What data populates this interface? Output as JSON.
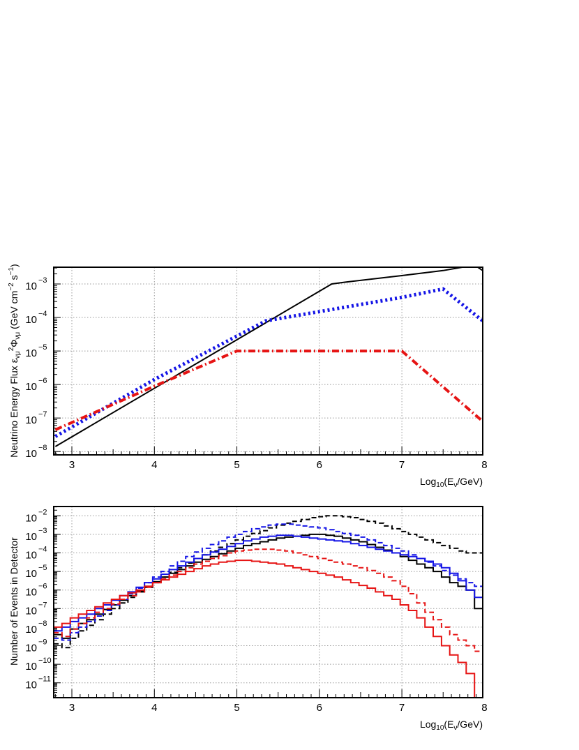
{
  "chart_data": [
    {
      "type": "line",
      "title": "",
      "xlabel": "Log₁₀(E_ν/GeV)",
      "xlabel_parts": [
        "Log",
        "10",
        "(E",
        "ν",
        "/GeV)"
      ],
      "ylabel": "Neutrino Energy Flux ε_νμ²Φ_νμ (GeV cm⁻² s⁻¹)",
      "ylabel_parts": [
        "Neutrino Energy Flux ε",
        "νμ",
        "2",
        "Φ",
        "νμ",
        " (GeV cm",
        "−2",
        " s",
        "−1",
        ")"
      ],
      "xlim": [
        2.78,
        7.98
      ],
      "ylim_log10": [
        -8.1,
        -2.5
      ],
      "y_scale": "log",
      "grid": true,
      "x_ticks": [
        3,
        4,
        5,
        6,
        7,
        8
      ],
      "x_tick_labels": [
        "3",
        "4",
        "5",
        "6",
        "7",
        "8"
      ],
      "y_ticks_log10": [
        -8,
        -7,
        -6,
        -5,
        -4,
        -3
      ],
      "y_tick_base": "10",
      "y_tick_exps": [
        "−8",
        "−7",
        "−6",
        "−5",
        "−4",
        "−3"
      ],
      "series": [
        {
          "color": "#000000",
          "style": "solid",
          "width": 2,
          "x": [
            2.8,
            6.15,
            6.3,
            7.0,
            7.5,
            7.85,
            7.92,
            7.98
          ],
          "log10y": [
            -7.85,
            -3.0,
            -2.95,
            -2.75,
            -2.6,
            -2.45,
            -2.5,
            -2.6
          ]
        },
        {
          "color": "#1414e6",
          "style": "dotted",
          "width": 5,
          "x": [
            2.8,
            4.0,
            5.35,
            7.0,
            7.5,
            7.98
          ],
          "log10y": [
            -7.55,
            -5.85,
            -4.1,
            -3.4,
            -3.15,
            -4.1
          ]
        },
        {
          "color": "#e61414",
          "style": "dashdot",
          "width": 4,
          "x": [
            2.8,
            4.0,
            5.0,
            7.0,
            7.98
          ],
          "log10y": [
            -7.35,
            -6.05,
            -5.0,
            -5.0,
            -7.1
          ]
        }
      ]
    },
    {
      "type": "line",
      "title": "",
      "xlabel": "Log₁₀(E_ν/GeV)",
      "xlabel_parts": [
        "Log",
        "10",
        "(E",
        "ν",
        "/GeV)"
      ],
      "ylabel": "Number of Events in Detector",
      "xlim": [
        2.78,
        7.98
      ],
      "ylim_log10": [
        -11.8,
        -1.5
      ],
      "y_scale": "log",
      "grid": true,
      "x_ticks": [
        3,
        4,
        5,
        6,
        7,
        8
      ],
      "x_tick_labels": [
        "3",
        "4",
        "5",
        "6",
        "7",
        "8"
      ],
      "y_ticks_log10": [
        -11,
        -10,
        -9,
        -8,
        -7,
        -6,
        -5,
        -4,
        -3,
        -2
      ],
      "y_tick_base": "10",
      "y_tick_exps": [
        "−11",
        "−10",
        "−9",
        "−8",
        "−7",
        "−6",
        "−5",
        "−4",
        "−3",
        "−2"
      ],
      "bin_width": 0.1,
      "x_start": 2.78,
      "series": [
        {
          "color": "#000000",
          "style": "solid",
          "width": 2,
          "log10y": [
            -8.4,
            -8.6,
            -8.1,
            -7.8,
            -7.6,
            -7.3,
            -7.05,
            -6.8,
            -6.55,
            -6.3,
            -6.05,
            -5.8,
            -5.55,
            -5.3,
            -5.1,
            -4.9,
            -4.7,
            -4.5,
            -4.35,
            -4.2,
            -4.05,
            -3.9,
            -3.75,
            -3.6,
            -3.5,
            -3.4,
            -3.3,
            -3.2,
            -3.15,
            -3.1,
            -3.05,
            -3.0,
            -3.0,
            -3.05,
            -3.1,
            -3.2,
            -3.3,
            -3.4,
            -3.55,
            -3.7,
            -3.85,
            -4.0,
            -4.2,
            -4.4,
            -4.6,
            -4.8,
            -5.0,
            -5.3,
            -5.6,
            -5.8,
            -6.0,
            -7.0
          ]
        },
        {
          "color": "#000000",
          "style": "dashed",
          "width": 2,
          "log10y": [
            -8.9,
            -9.1,
            -8.6,
            -8.2,
            -7.9,
            -7.6,
            -7.3,
            -7.0,
            -6.7,
            -6.4,
            -6.1,
            -5.85,
            -5.6,
            -5.3,
            -5.05,
            -4.8,
            -4.55,
            -4.3,
            -4.1,
            -3.9,
            -3.7,
            -3.5,
            -3.3,
            -3.1,
            -2.95,
            -2.8,
            -2.65,
            -2.5,
            -2.4,
            -2.3,
            -2.2,
            -2.1,
            -2.05,
            -2.0,
            -2.0,
            -2.05,
            -2.1,
            -2.2,
            -2.3,
            -2.4,
            -2.55,
            -2.7,
            -2.85,
            -3.0,
            -3.15,
            -3.3,
            -3.45,
            -3.6,
            -3.75,
            -3.9,
            -4.0,
            -4.0
          ]
        },
        {
          "color": "#1414e6",
          "style": "solid",
          "width": 2,
          "log10y": [
            -8.2,
            -8.0,
            -7.7,
            -7.5,
            -7.3,
            -7.0,
            -6.8,
            -6.55,
            -6.3,
            -6.1,
            -5.85,
            -5.6,
            -5.4,
            -5.15,
            -4.9,
            -4.7,
            -4.5,
            -4.3,
            -4.1,
            -3.95,
            -3.8,
            -3.65,
            -3.5,
            -3.35,
            -3.25,
            -3.15,
            -3.1,
            -3.05,
            -3.05,
            -3.1,
            -3.15,
            -3.2,
            -3.25,
            -3.3,
            -3.35,
            -3.4,
            -3.5,
            -3.6,
            -3.7,
            -3.8,
            -3.9,
            -4.0,
            -4.1,
            -4.2,
            -4.3,
            -4.45,
            -4.6,
            -4.8,
            -5.1,
            -5.5,
            -6.0,
            -6.4
          ]
        },
        {
          "color": "#1414e6",
          "style": "dashed",
          "width": 2,
          "log10y": [
            -8.6,
            -8.7,
            -8.3,
            -8.0,
            -7.7,
            -7.4,
            -7.1,
            -6.8,
            -6.5,
            -6.2,
            -5.9,
            -5.6,
            -5.3,
            -5.0,
            -4.7,
            -4.45,
            -4.2,
            -3.95,
            -3.75,
            -3.55,
            -3.35,
            -3.15,
            -3.0,
            -2.85,
            -2.7,
            -2.6,
            -2.5,
            -2.45,
            -2.45,
            -2.5,
            -2.55,
            -2.6,
            -2.65,
            -2.75,
            -2.85,
            -2.95,
            -3.05,
            -3.15,
            -3.3,
            -3.45,
            -3.6,
            -3.75,
            -3.9,
            -4.1,
            -4.3,
            -4.5,
            -4.7,
            -4.95,
            -5.2,
            -5.4,
            -5.6,
            -5.8
          ]
        },
        {
          "color": "#e61414",
          "style": "solid",
          "width": 2,
          "log10y": [
            -8.0,
            -7.8,
            -7.5,
            -7.3,
            -7.1,
            -6.9,
            -6.7,
            -6.5,
            -6.3,
            -6.15,
            -6.0,
            -5.8,
            -5.6,
            -5.45,
            -5.3,
            -5.15,
            -5.0,
            -4.85,
            -4.7,
            -4.6,
            -4.5,
            -4.45,
            -4.4,
            -4.4,
            -4.45,
            -4.5,
            -4.55,
            -4.6,
            -4.7,
            -4.8,
            -4.9,
            -5.0,
            -5.1,
            -5.2,
            -5.3,
            -5.45,
            -5.6,
            -5.75,
            -5.9,
            -6.1,
            -6.3,
            -6.5,
            -6.8,
            -7.1,
            -7.5,
            -8.0,
            -8.5,
            -9.0,
            -9.5,
            -9.9,
            -10.5,
            -11.8
          ]
        },
        {
          "color": "#e61414",
          "style": "dashed",
          "width": 2,
          "log10y": [
            -8.3,
            -8.5,
            -8.1,
            -7.8,
            -7.5,
            -7.2,
            -7.0,
            -6.75,
            -6.5,
            -6.3,
            -6.1,
            -5.85,
            -5.6,
            -5.4,
            -5.2,
            -5.0,
            -4.8,
            -4.6,
            -4.45,
            -4.3,
            -4.15,
            -4.0,
            -3.9,
            -3.85,
            -3.8,
            -3.8,
            -3.8,
            -3.85,
            -3.9,
            -4.0,
            -4.1,
            -4.2,
            -4.3,
            -4.4,
            -4.5,
            -4.6,
            -4.7,
            -4.8,
            -4.95,
            -5.1,
            -5.3,
            -5.5,
            -5.8,
            -6.2,
            -6.7,
            -7.2,
            -7.6,
            -8.0,
            -8.4,
            -8.7,
            -9.0,
            -9.3
          ]
        }
      ]
    }
  ]
}
